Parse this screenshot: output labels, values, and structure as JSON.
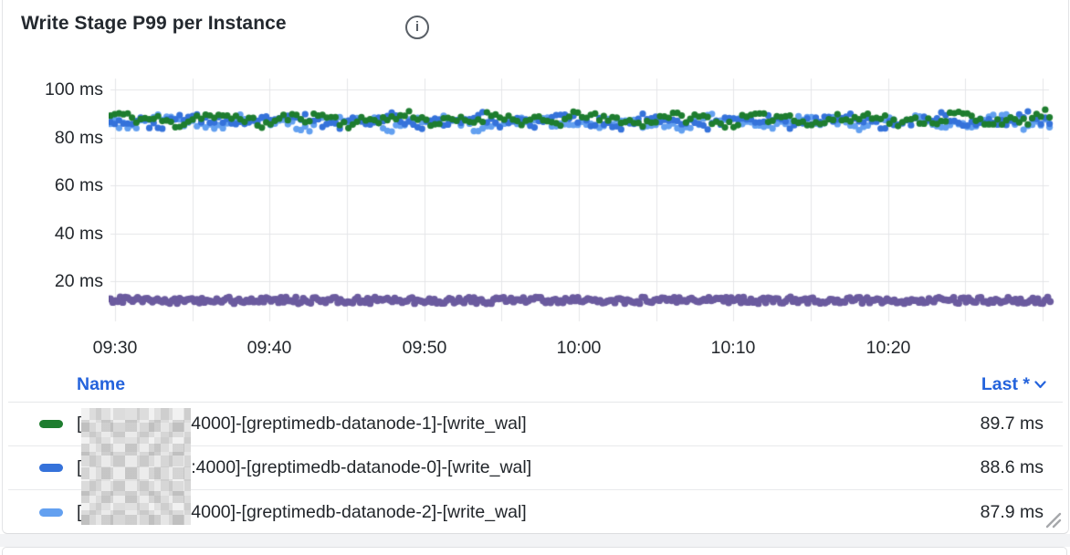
{
  "panel": {
    "title": "Write Stage P99 per Instance"
  },
  "chart_data": {
    "type": "scatter",
    "title": "Write Stage P99 per Instance",
    "unit": "ms",
    "ylim": [
      0,
      110
    ],
    "y_tick_values": [
      100,
      80,
      60,
      40,
      20
    ],
    "y_tick_labels": [
      "100 ms",
      "80 ms",
      "60 ms",
      "40 ms",
      "20 ms"
    ],
    "x_tick_labels": [
      "09:30",
      "09:40",
      "09:50",
      "10:00",
      "10:10",
      "10:20"
    ],
    "x_visible_span_minutes": [
      -0.3,
      60.5
    ],
    "minor_grid_minutes": 5,
    "grid": true,
    "grid_color": "#E5E6E8",
    "series": [
      {
        "name": "[1(redacted)4000]-[greptimedb-datanode-1]-[write_wal]",
        "color": "#1E7D2F",
        "mean_ms": 87.6,
        "band_ms": [
          81,
          93
        ],
        "noise_ms": 3.6,
        "seed": 11,
        "phase": 0.9,
        "last_ms": 89.7
      },
      {
        "name": "[1(redacted):4000]-[greptimedb-datanode-0]-[write_wal]",
        "color": "#3572DA",
        "mean_ms": 86.9,
        "band_ms": [
          80,
          92
        ],
        "noise_ms": 3.6,
        "seed": 23,
        "phase": 2.4,
        "last_ms": 88.6
      },
      {
        "name": "[1(redacted)4000]-[greptimedb-datanode-2]-[write_wal]",
        "color": "#63A0F0",
        "mean_ms": 86.2,
        "band_ms": [
          79,
          92
        ],
        "noise_ms": 3.6,
        "seed": 37,
        "phase": 4.6,
        "last_ms": 87.9
      }
    ],
    "flat_series": {
      "color": "#6B5B9F",
      "value_ms": 12,
      "thickness_ms": 5
    },
    "legend_position": "bottom-table"
  },
  "legend": {
    "name_header": "Name",
    "last_header": "Last *",
    "rows": [
      {
        "prefix": "[1",
        "redacted": true,
        "suffix": "4000]-[greptimedb-datanode-1]-[write_wal]",
        "last": "89.7 ms",
        "color": "#1E7D2F"
      },
      {
        "prefix": "[1",
        "redacted": true,
        "suffix": ":4000]-[greptimedb-datanode-0]-[write_wal]",
        "last": "88.6 ms",
        "color": "#3572DA"
      },
      {
        "prefix": "[1",
        "redacted": true,
        "suffix": "4000]-[greptimedb-datanode-2]-[write_wal]",
        "last": "87.9 ms",
        "color": "#63A0F0"
      }
    ]
  }
}
